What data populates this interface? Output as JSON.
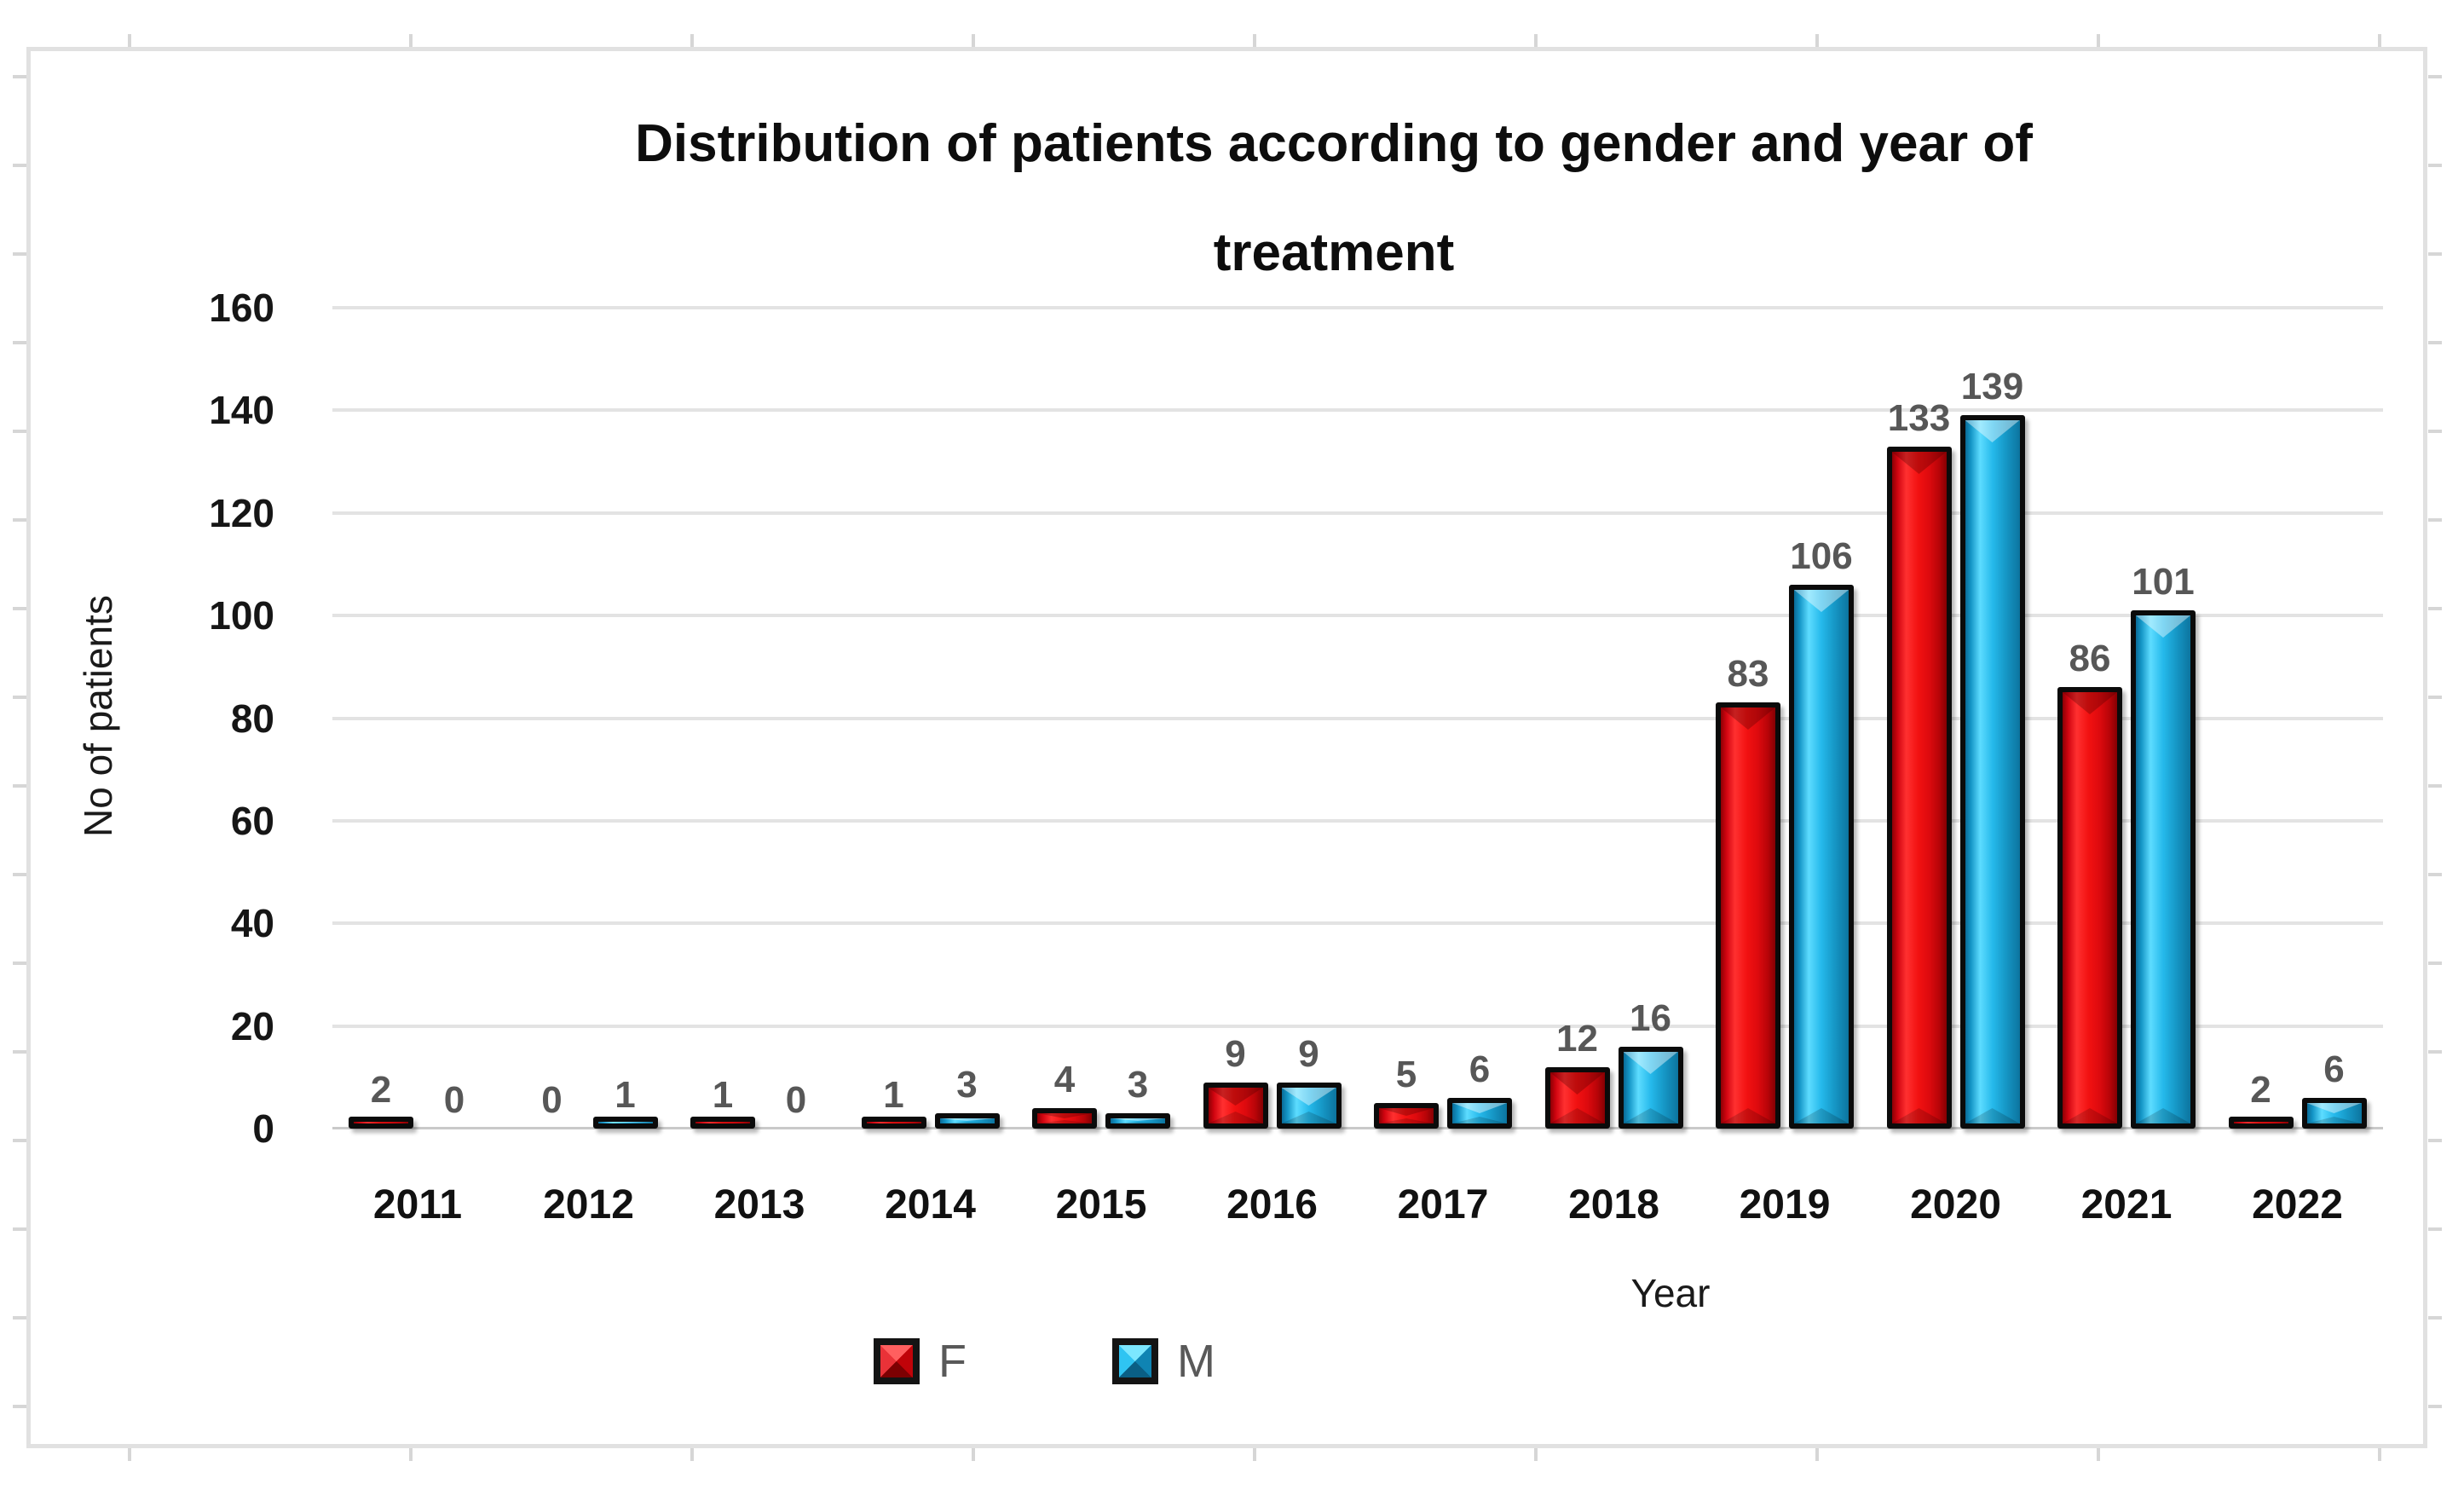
{
  "chart_data": {
    "type": "bar",
    "title": "Distribution of patients according to gender and year of treatment",
    "title_lines": [
      "Distribution of patients according to gender and year of",
      "treatment"
    ],
    "xlabel": "Year",
    "ylabel": "No of patients",
    "categories": [
      "2011",
      "2012",
      "2013",
      "2014",
      "2015",
      "2016",
      "2017",
      "2018",
      "2019",
      "2020",
      "2021",
      "2022"
    ],
    "series": [
      {
        "name": "F",
        "color": "#e30613",
        "values": [
          2,
          0,
          1,
          1,
          4,
          9,
          5,
          12,
          83,
          133,
          86,
          2
        ]
      },
      {
        "name": "M",
        "color": "#1fb0e0",
        "values": [
          0,
          1,
          0,
          3,
          3,
          9,
          6,
          16,
          106,
          139,
          101,
          6
        ]
      }
    ],
    "ylim": [
      0,
      160
    ],
    "yticks": [
      0,
      20,
      40,
      60,
      80,
      100,
      120,
      140,
      160
    ],
    "grid": true,
    "value_labels": true,
    "legend_position": "bottom",
    "value_label_color": "#575757",
    "gridline_color": "#e3e3e3"
  }
}
